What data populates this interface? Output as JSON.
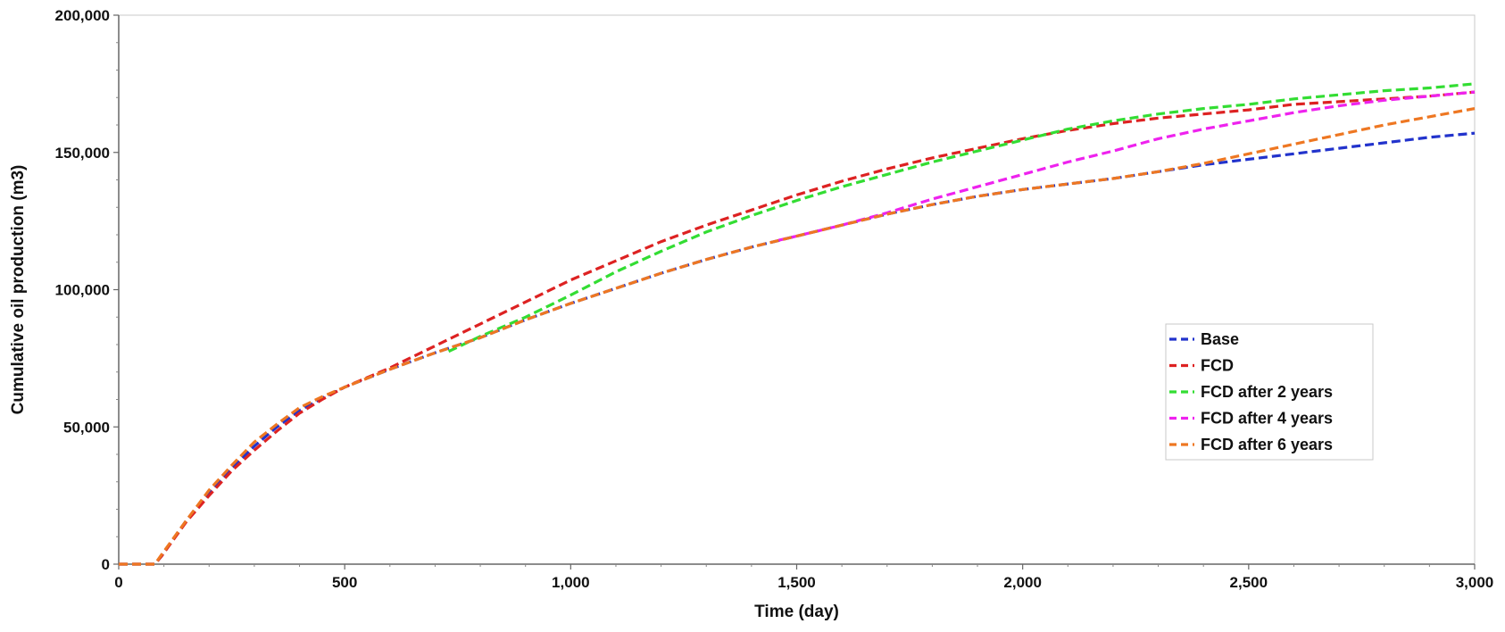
{
  "chart_data": {
    "type": "line",
    "title": "",
    "xlabel": "Time (day)",
    "ylabel": "Cumulative oil production (m3)",
    "xlim": [
      0,
      3000
    ],
    "ylim": [
      0,
      200000
    ],
    "grid": false,
    "legend_position": "right",
    "x_ticks": [
      0,
      500,
      1000,
      1500,
      2000,
      2500,
      3000
    ],
    "x_tick_labels": [
      "0",
      "500",
      "1,000",
      "1,500",
      "2,000",
      "2,500",
      "3,000"
    ],
    "y_ticks": [
      0,
      50000,
      100000,
      150000,
      200000
    ],
    "y_tick_labels": [
      "0",
      "50,000",
      "100,000",
      "150,000",
      "200,000"
    ],
    "series": [
      {
        "name": "Base",
        "color": "#2233cc",
        "x": [
          0,
          80,
          95,
          150,
          200,
          250,
          300,
          350,
          400,
          450,
          500,
          600,
          700,
          800,
          900,
          1000,
          1100,
          1200,
          1300,
          1400,
          1500,
          1600,
          1700,
          1800,
          1900,
          2000,
          2100,
          2200,
          2300,
          2400,
          2500,
          2600,
          2700,
          2800,
          2900,
          3000
        ],
        "y": [
          0,
          0,
          3000,
          16000,
          26000,
          35000,
          43000,
          50000,
          56000,
          60500,
          64500,
          71000,
          77000,
          82500,
          89000,
          95000,
          100500,
          106000,
          111000,
          115500,
          119500,
          123500,
          127500,
          131000,
          134000,
          136500,
          138500,
          140500,
          143000,
          145500,
          147500,
          149500,
          151500,
          153500,
          155500,
          157000
        ]
      },
      {
        "name": "FCD",
        "color": "#dd2222",
        "x": [
          0,
          80,
          95,
          150,
          200,
          250,
          300,
          350,
          400,
          450,
          500,
          600,
          700,
          800,
          900,
          1000,
          1100,
          1200,
          1300,
          1400,
          1500,
          1600,
          1700,
          1800,
          1900,
          2000,
          2100,
          2200,
          2300,
          2400,
          2500,
          2600,
          2700,
          2800,
          2900,
          3000
        ],
        "y": [
          0,
          0,
          3000,
          15500,
          25000,
          34000,
          41500,
          48500,
          55000,
          60000,
          64500,
          71500,
          79500,
          87500,
          95500,
          103500,
          110500,
          117500,
          123500,
          129000,
          134500,
          139500,
          144000,
          148000,
          151500,
          155000,
          158000,
          160500,
          162500,
          164000,
          165500,
          167500,
          168500,
          169500,
          170500,
          172000
        ]
      },
      {
        "name": "FCD after 2 years",
        "color": "#33dd33",
        "x": [
          730,
          800,
          900,
          1000,
          1100,
          1200,
          1300,
          1400,
          1500,
          1600,
          1700,
          1800,
          1900,
          2000,
          2100,
          2200,
          2300,
          2400,
          2500,
          2600,
          2700,
          2800,
          2900,
          3000
        ],
        "y": [
          77500,
          83000,
          90000,
          98000,
          106500,
          114000,
          121000,
          127000,
          132500,
          137500,
          142000,
          146500,
          150500,
          154500,
          158500,
          161500,
          164000,
          166000,
          167500,
          169500,
          171000,
          172500,
          173500,
          175000
        ]
      },
      {
        "name": "FCD after 4 years",
        "color": "#ee22ee",
        "x": [
          1460,
          1500,
          1600,
          1700,
          1800,
          1900,
          2000,
          2100,
          2200,
          2300,
          2400,
          2500,
          2600,
          2700,
          2800,
          2900,
          3000
        ],
        "y": [
          118000,
          119500,
          123500,
          128000,
          133000,
          137500,
          142000,
          146500,
          150500,
          155000,
          158500,
          161500,
          164500,
          167000,
          169000,
          170500,
          172000
        ]
      },
      {
        "name": "FCD after 6 years",
        "color": "#ee7722",
        "x": [
          0,
          80,
          95,
          150,
          200,
          250,
          300,
          350,
          400,
          450,
          500,
          600,
          700,
          800,
          900,
          1000,
          1100,
          1200,
          1300,
          1400,
          1500,
          1600,
          1700,
          1800,
          1900,
          2000,
          2100,
          2200,
          2300,
          2400,
          2500,
          2600,
          2700,
          2800,
          2900,
          3000
        ],
        "y": [
          0,
          0,
          3500,
          16000,
          27000,
          36000,
          44500,
          51000,
          57000,
          61000,
          64500,
          71000,
          77000,
          82500,
          89000,
          95000,
          100500,
          106000,
          111000,
          115500,
          119500,
          123500,
          127500,
          131000,
          134000,
          136500,
          138500,
          140500,
          143000,
          146000,
          149500,
          153000,
          156500,
          160000,
          163000,
          166000
        ]
      }
    ]
  }
}
